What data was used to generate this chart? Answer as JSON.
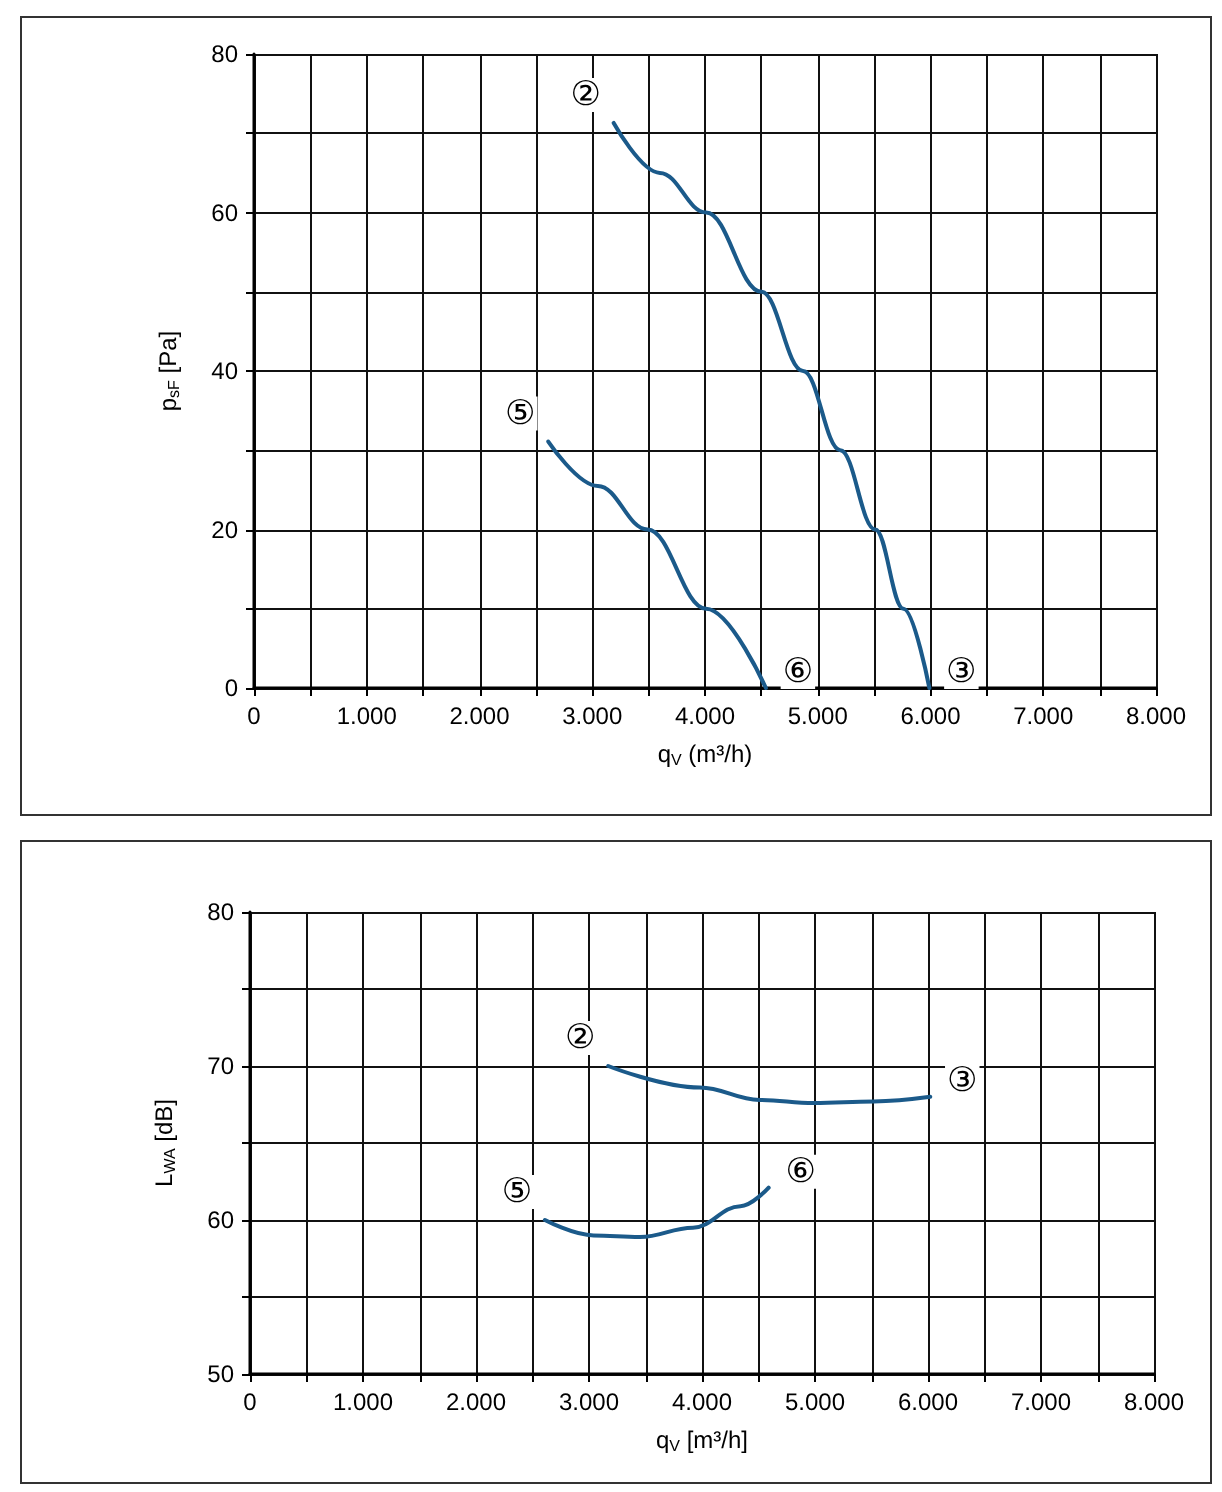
{
  "chart_data": [
    {
      "type": "line",
      "xlabel": "q$_{V}$ (m³/h)",
      "ylabel": "p$_{sF}$ [Pa]",
      "xlim": [
        0,
        8000
      ],
      "ylim": [
        0,
        80
      ],
      "xticks": [
        0,
        {
          "value": 500,
          "label": null
        },
        {
          "value": 1000,
          "label": "1.000"
        },
        {
          "value": 1500,
          "label": null
        },
        {
          "value": 2000,
          "label": "2.000"
        },
        {
          "value": 2500,
          "label": null
        },
        {
          "value": 3000,
          "label": "3.000"
        },
        {
          "value": 3500,
          "label": null
        },
        {
          "value": 4000,
          "label": "4.000"
        },
        {
          "value": 4500,
          "label": null
        },
        {
          "value": 5000,
          "label": "5.000"
        },
        {
          "value": 5500,
          "label": null
        },
        {
          "value": 6000,
          "label": "6.000"
        },
        {
          "value": 6500,
          "label": null
        },
        {
          "value": 7000,
          "label": "7.000"
        },
        {
          "value": 7500,
          "label": null
        },
        {
          "value": 8000,
          "label": "8.000"
        }
      ],
      "yticks": [
        0,
        {
          "value": 10,
          "label": null
        },
        20,
        {
          "value": 30,
          "label": null
        },
        40,
        {
          "value": 50,
          "label": null
        },
        60,
        {
          "value": 70,
          "label": null
        },
        80
      ],
      "grid": true,
      "marker": "none",
      "line_style": "solid",
      "series": [
        {
          "color": "#1b5a8a",
          "x": [
            3190,
            3600,
            4010,
            4500,
            4870,
            5200,
            5510,
            5760,
            5990
          ],
          "values": [
            71.3,
            65,
            60,
            50,
            40,
            30,
            20,
            10,
            0
          ]
        },
        {
          "color": "#1b5a8a",
          "x": [
            2610,
            3050,
            3490,
            4010,
            4540
          ],
          "values": [
            31.1,
            25.5,
            20,
            10,
            0
          ]
        }
      ],
      "annotations": [
        {
          "text": "②",
          "x": 3190,
          "y": 71.3
        },
        {
          "text": "③",
          "x": 5990,
          "y": 0
        },
        {
          "text": "⑤",
          "x": 2610,
          "y": 31.1
        },
        {
          "text": "⑥",
          "x": 4540,
          "y": 0
        }
      ]
    },
    {
      "type": "line",
      "xlabel": "q$_{V}$ [m³/h]",
      "ylabel": "L$_{WA}$ [dB]",
      "xlim": [
        0,
        8000
      ],
      "ylim": [
        50,
        80
      ],
      "xticks": [
        0,
        {
          "value": 500,
          "label": null
        },
        {
          "value": 1000,
          "label": "1.000"
        },
        {
          "value": 1500,
          "label": null
        },
        {
          "value": 2000,
          "label": "2.000"
        },
        {
          "value": 2500,
          "label": null
        },
        {
          "value": 3000,
          "label": "3.000"
        },
        {
          "value": 3500,
          "label": null
        },
        {
          "value": 4000,
          "label": "4.000"
        },
        {
          "value": 4500,
          "label": null
        },
        {
          "value": 5000,
          "label": "5.000"
        },
        {
          "value": 5500,
          "label": null
        },
        {
          "value": 6000,
          "label": "6.000"
        },
        {
          "value": 6500,
          "label": null
        },
        {
          "value": 7000,
          "label": "7.000"
        },
        {
          "value": 7500,
          "label": null
        },
        {
          "value": 8000,
          "label": "8.000"
        }
      ],
      "yticks": [
        50,
        {
          "value": 55,
          "label": null
        },
        60,
        {
          "value": 65,
          "label": null
        },
        70,
        {
          "value": 75,
          "label": null
        },
        80
      ],
      "grid": true,
      "marker": "none",
      "line_style": "solid",
      "series": [
        {
          "color": "#1b5a8a",
          "x": [
            3170,
            3980,
            4510,
            4990,
            5520,
            6020
          ],
          "values": [
            70.0,
            68.6,
            67.8,
            67.6,
            67.7,
            68.0
          ]
        },
        {
          "color": "#1b5a8a",
          "x": [
            2610,
            3040,
            3450,
            3920,
            4340,
            4590
          ],
          "values": [
            60.0,
            59.0,
            58.9,
            59.5,
            60.9,
            62.1
          ]
        }
      ],
      "annotations": [
        {
          "text": "②",
          "x": 3170,
          "y": 70.0
        },
        {
          "text": "③",
          "x": 6020,
          "y": 68.0
        },
        {
          "text": "⑤",
          "x": 2610,
          "y": 60.0
        },
        {
          "text": "⑥",
          "x": 4590,
          "y": 62.1
        }
      ]
    }
  ]
}
